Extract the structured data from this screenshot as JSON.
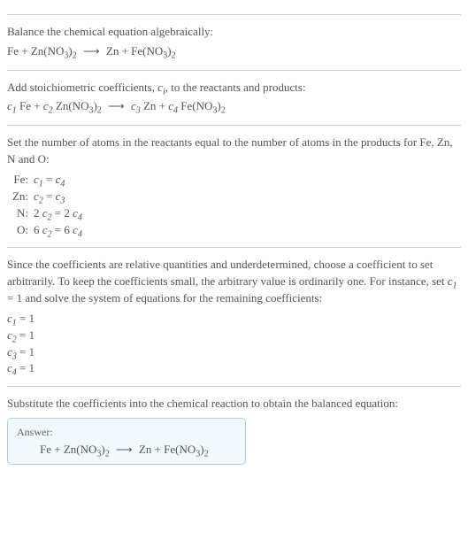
{
  "section1": {
    "title": "Balance the chemical equation algebraically:",
    "eq_lhs1": "Fe",
    "eq_lhs2": "Zn(NO",
    "eq_lhs2_sub": "3",
    "eq_lhs2_close": ")",
    "eq_lhs2_sub2": "2",
    "arrow": "⟶",
    "eq_rhs1": "Zn",
    "eq_rhs2": "Fe(NO",
    "eq_rhs2_sub": "3",
    "eq_rhs2_close": ")",
    "eq_rhs2_sub2": "2"
  },
  "section2": {
    "title_a": "Add stoichiometric coefficients, ",
    "ci": "c",
    "ci_sub": "i",
    "title_b": ", to the reactants and products:",
    "c1": "c",
    "c1s": "1",
    "t1": " Fe + ",
    "c2": "c",
    "c2s": "2",
    "t2": " Zn(NO",
    "t2sub": "3",
    "t2close": ")",
    "t2sub2": "2",
    "arrow": "⟶",
    "c3": "c",
    "c3s": "3",
    "t3": " Zn + ",
    "c4": "c",
    "c4s": "4",
    "t4": " Fe(NO",
    "t4sub": "3",
    "t4close": ")",
    "t4sub2": "2"
  },
  "section3": {
    "title": "Set the number of atoms in the reactants equal to the number of atoms in the products for Fe, Zn, N and O:",
    "rows": [
      {
        "label": "Fe:",
        "c_a": "c",
        "s_a": "1",
        "mid": " = ",
        "c_b": "c",
        "s_b": "4",
        "pre_a": "",
        "pre_b": ""
      },
      {
        "label": "Zn:",
        "c_a": "c",
        "s_a": "2",
        "mid": " = ",
        "c_b": "c",
        "s_b": "3",
        "pre_a": "",
        "pre_b": ""
      },
      {
        "label": "N:",
        "c_a": "c",
        "s_a": "2",
        "mid": " = ",
        "c_b": "c",
        "s_b": "4",
        "pre_a": "2 ",
        "pre_b": "2 "
      },
      {
        "label": "O:",
        "c_a": "c",
        "s_a": "2",
        "mid": " = ",
        "c_b": "c",
        "s_b": "4",
        "pre_a": "6 ",
        "pre_b": "6 "
      }
    ]
  },
  "section4": {
    "title_a": "Since the coefficients are relative quantities and underdetermined, choose a coefficient to set arbitrarily. To keep the coefficients small, the arbitrary value is ordinarily one. For instance, set ",
    "c1": "c",
    "c1s": "1",
    "title_b": " = 1 and solve the system of equations for the remaining coefficients:",
    "coeffs": [
      {
        "c": "c",
        "s": "1",
        "v": " = 1"
      },
      {
        "c": "c",
        "s": "2",
        "v": " = 1"
      },
      {
        "c": "c",
        "s": "3",
        "v": " = 1"
      },
      {
        "c": "c",
        "s": "4",
        "v": " = 1"
      }
    ]
  },
  "section5": {
    "title": "Substitute the coefficients into the chemical reaction to obtain the balanced equation:",
    "answer_label": "Answer:",
    "eq_lhs1": "Fe",
    "plus": " + ",
    "eq_lhs2": "Zn(NO",
    "eq_lhs2_sub": "3",
    "eq_lhs2_close": ")",
    "eq_lhs2_sub2": "2",
    "arrow": "⟶",
    "eq_rhs1": "Zn",
    "eq_rhs2": "Fe(NO",
    "eq_rhs2_sub": "3",
    "eq_rhs2_close": ")",
    "eq_rhs2_sub2": "2"
  },
  "style": {
    "text_color": "#555555",
    "border_color": "#cccccc",
    "answer_bg": "#f1f9fd",
    "answer_border": "#a9cfe6",
    "base_fontsize": 13
  }
}
